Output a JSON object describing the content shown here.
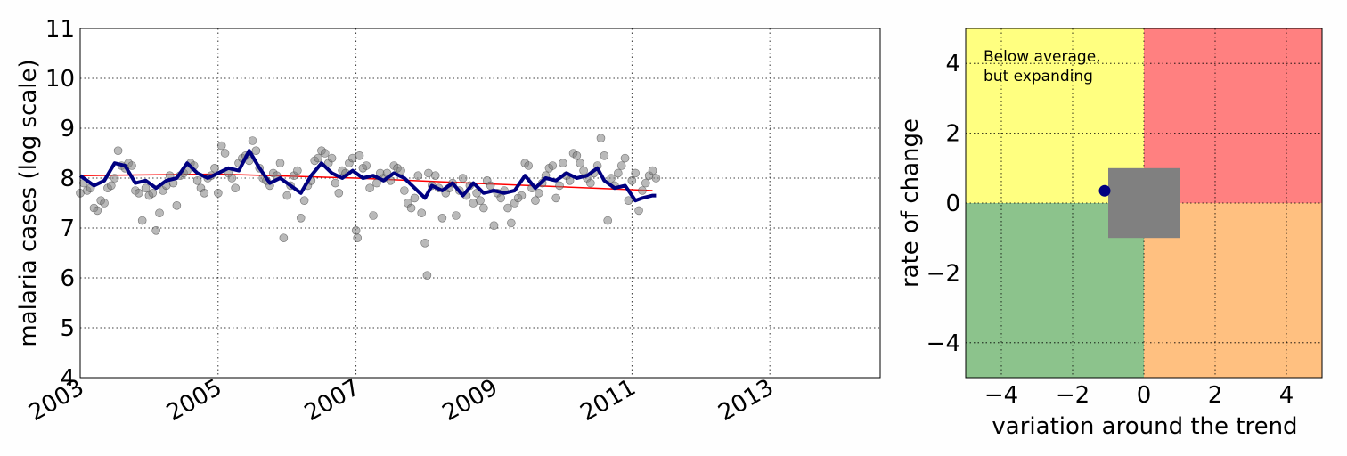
{
  "chart_data": [
    {
      "type": "scatter",
      "ylabel": "malaria cases (log scale)",
      "xlabel": "",
      "xlim": [
        2003.0,
        2014.6
      ],
      "ylim": [
        4,
        11
      ],
      "x_ticks": [
        "2003",
        "2005",
        "2007",
        "2009",
        "2011",
        "2013"
      ],
      "y_ticks": [
        "4",
        "5",
        "6",
        "7",
        "8",
        "9",
        "10",
        "11"
      ],
      "grid": true,
      "series": [
        {
          "kind": "scatter",
          "color": "#808080",
          "points": [
            [
              2003.0,
              7.7
            ],
            [
              2003.05,
              7.9
            ],
            [
              2003.1,
              7.75
            ],
            [
              2003.15,
              7.8
            ],
            [
              2003.2,
              7.4
            ],
            [
              2003.25,
              7.35
            ],
            [
              2003.3,
              7.55
            ],
            [
              2003.35,
              7.5
            ],
            [
              2003.4,
              7.8
            ],
            [
              2003.45,
              7.85
            ],
            [
              2003.5,
              8.0
            ],
            [
              2003.55,
              8.55
            ],
            [
              2003.6,
              8.25
            ],
            [
              2003.65,
              8.2
            ],
            [
              2003.7,
              8.3
            ],
            [
              2003.75,
              8.25
            ],
            [
              2003.8,
              7.75
            ],
            [
              2003.85,
              7.7
            ],
            [
              2003.9,
              7.15
            ],
            [
              2003.95,
              7.8
            ],
            [
              2004.0,
              7.65
            ],
            [
              2004.05,
              7.7
            ],
            [
              2004.1,
              6.95
            ],
            [
              2004.15,
              7.3
            ],
            [
              2004.2,
              7.75
            ],
            [
              2004.25,
              7.85
            ],
            [
              2004.3,
              8.05
            ],
            [
              2004.35,
              7.9
            ],
            [
              2004.4,
              7.45
            ],
            [
              2004.45,
              8.05
            ],
            [
              2004.5,
              8.1
            ],
            [
              2004.55,
              8.15
            ],
            [
              2004.6,
              8.3
            ],
            [
              2004.65,
              8.25
            ],
            [
              2004.7,
              7.95
            ],
            [
              2004.75,
              7.8
            ],
            [
              2004.8,
              7.7
            ],
            [
              2004.85,
              8.0
            ],
            [
              2004.9,
              8.05
            ],
            [
              2004.95,
              8.2
            ],
            [
              2005.0,
              7.7
            ],
            [
              2005.05,
              8.65
            ],
            [
              2005.1,
              8.5
            ],
            [
              2005.15,
              8.1
            ],
            [
              2005.2,
              8.0
            ],
            [
              2005.25,
              7.8
            ],
            [
              2005.3,
              8.3
            ],
            [
              2005.35,
              8.4
            ],
            [
              2005.4,
              8.45
            ],
            [
              2005.45,
              8.35
            ],
            [
              2005.5,
              8.75
            ],
            [
              2005.55,
              8.55
            ],
            [
              2005.6,
              8.2
            ],
            [
              2005.65,
              8.0
            ],
            [
              2005.7,
              7.95
            ],
            [
              2005.75,
              7.85
            ],
            [
              2005.8,
              8.1
            ],
            [
              2005.85,
              8.05
            ],
            [
              2005.9,
              8.3
            ],
            [
              2005.95,
              6.8
            ],
            [
              2006.0,
              7.65
            ],
            [
              2006.05,
              7.85
            ],
            [
              2006.1,
              8.05
            ],
            [
              2006.15,
              8.15
            ],
            [
              2006.2,
              7.2
            ],
            [
              2006.25,
              7.55
            ],
            [
              2006.3,
              7.85
            ],
            [
              2006.35,
              7.95
            ],
            [
              2006.4,
              8.35
            ],
            [
              2006.45,
              8.4
            ],
            [
              2006.5,
              8.55
            ],
            [
              2006.55,
              8.5
            ],
            [
              2006.6,
              8.3
            ],
            [
              2006.65,
              8.4
            ],
            [
              2006.7,
              7.9
            ],
            [
              2006.75,
              7.7
            ],
            [
              2006.8,
              8.15
            ],
            [
              2006.85,
              8.1
            ],
            [
              2006.9,
              8.3
            ],
            [
              2006.95,
              8.4
            ],
            [
              2007.0,
              6.95
            ],
            [
              2007.02,
              6.8
            ],
            [
              2007.05,
              8.45
            ],
            [
              2007.1,
              8.2
            ],
            [
              2007.15,
              8.25
            ],
            [
              2007.2,
              7.8
            ],
            [
              2007.25,
              7.25
            ],
            [
              2007.3,
              7.9
            ],
            [
              2007.35,
              8.1
            ],
            [
              2007.4,
              8.0
            ],
            [
              2007.45,
              8.1
            ],
            [
              2007.5,
              7.95
            ],
            [
              2007.55,
              8.25
            ],
            [
              2007.6,
              8.2
            ],
            [
              2007.65,
              8.15
            ],
            [
              2007.7,
              7.75
            ],
            [
              2007.75,
              7.5
            ],
            [
              2007.8,
              7.4
            ],
            [
              2007.85,
              7.6
            ],
            [
              2007.9,
              8.05
            ],
            [
              2007.95,
              7.3
            ],
            [
              2008.0,
              6.7
            ],
            [
              2008.03,
              6.05
            ],
            [
              2008.05,
              8.1
            ],
            [
              2008.1,
              7.85
            ],
            [
              2008.15,
              8.05
            ],
            [
              2008.2,
              7.8
            ],
            [
              2008.25,
              7.2
            ],
            [
              2008.3,
              7.7
            ],
            [
              2008.35,
              7.8
            ],
            [
              2008.4,
              7.9
            ],
            [
              2008.45,
              7.25
            ],
            [
              2008.5,
              7.75
            ],
            [
              2008.55,
              8.0
            ],
            [
              2008.6,
              7.65
            ],
            [
              2008.65,
              7.85
            ],
            [
              2008.7,
              7.5
            ],
            [
              2008.75,
              7.7
            ],
            [
              2008.8,
              7.55
            ],
            [
              2008.85,
              7.4
            ],
            [
              2008.9,
              7.95
            ],
            [
              2008.95,
              7.85
            ],
            [
              2009.0,
              7.05
            ],
            [
              2009.05,
              7.7
            ],
            [
              2009.1,
              7.6
            ],
            [
              2009.15,
              7.75
            ],
            [
              2009.2,
              7.4
            ],
            [
              2009.25,
              7.1
            ],
            [
              2009.3,
              7.5
            ],
            [
              2009.35,
              7.6
            ],
            [
              2009.4,
              7.65
            ],
            [
              2009.45,
              8.3
            ],
            [
              2009.5,
              8.25
            ],
            [
              2009.55,
              7.8
            ],
            [
              2009.6,
              7.55
            ],
            [
              2009.65,
              7.7
            ],
            [
              2009.7,
              7.9
            ],
            [
              2009.75,
              8.05
            ],
            [
              2009.8,
              8.2
            ],
            [
              2009.85,
              8.25
            ],
            [
              2009.9,
              7.6
            ],
            [
              2009.95,
              7.85
            ],
            [
              2010.0,
              8.3
            ],
            [
              2010.05,
              8.05
            ],
            [
              2010.1,
              7.95
            ],
            [
              2010.15,
              8.5
            ],
            [
              2010.2,
              8.45
            ],
            [
              2010.25,
              8.3
            ],
            [
              2010.3,
              8.15
            ],
            [
              2010.35,
              8.0
            ],
            [
              2010.4,
              7.9
            ],
            [
              2010.45,
              8.1
            ],
            [
              2010.5,
              8.25
            ],
            [
              2010.55,
              8.8
            ],
            [
              2010.6,
              8.45
            ],
            [
              2010.65,
              7.15
            ],
            [
              2010.7,
              8.0
            ],
            [
              2010.75,
              7.85
            ],
            [
              2010.8,
              8.1
            ],
            [
              2010.85,
              8.25
            ],
            [
              2010.9,
              8.4
            ],
            [
              2010.95,
              7.55
            ],
            [
              2011.0,
              7.95
            ],
            [
              2011.05,
              8.1
            ],
            [
              2011.1,
              7.35
            ],
            [
              2011.15,
              7.75
            ],
            [
              2011.2,
              7.9
            ],
            [
              2011.25,
              8.05
            ],
            [
              2011.3,
              8.15
            ],
            [
              2011.35,
              8.0
            ]
          ]
        },
        {
          "kind": "line",
          "color": "#000080",
          "points": [
            [
              2003.0,
              8.05
            ],
            [
              2003.2,
              7.85
            ],
            [
              2003.35,
              7.95
            ],
            [
              2003.5,
              8.3
            ],
            [
              2003.65,
              8.25
            ],
            [
              2003.8,
              7.9
            ],
            [
              2003.95,
              7.95
            ],
            [
              2004.1,
              7.8
            ],
            [
              2004.25,
              7.95
            ],
            [
              2004.4,
              8.0
            ],
            [
              2004.55,
              8.3
            ],
            [
              2004.7,
              8.1
            ],
            [
              2004.85,
              8.0
            ],
            [
              2005.0,
              8.1
            ],
            [
              2005.15,
              8.2
            ],
            [
              2005.3,
              8.15
            ],
            [
              2005.45,
              8.55
            ],
            [
              2005.6,
              8.2
            ],
            [
              2005.75,
              7.9
            ],
            [
              2005.9,
              8.0
            ],
            [
              2006.05,
              7.85
            ],
            [
              2006.2,
              7.7
            ],
            [
              2006.35,
              8.05
            ],
            [
              2006.5,
              8.3
            ],
            [
              2006.65,
              8.1
            ],
            [
              2006.8,
              8.0
            ],
            [
              2006.95,
              8.15
            ],
            [
              2007.1,
              8.0
            ],
            [
              2007.25,
              8.05
            ],
            [
              2007.4,
              7.95
            ],
            [
              2007.55,
              8.1
            ],
            [
              2007.7,
              8.0
            ],
            [
              2007.85,
              7.8
            ],
            [
              2008.0,
              7.6
            ],
            [
              2008.1,
              7.85
            ],
            [
              2008.25,
              7.75
            ],
            [
              2008.4,
              7.9
            ],
            [
              2008.55,
              7.65
            ],
            [
              2008.7,
              7.9
            ],
            [
              2008.85,
              7.7
            ],
            [
              2009.0,
              7.75
            ],
            [
              2009.15,
              7.7
            ],
            [
              2009.3,
              7.75
            ],
            [
              2009.45,
              8.05
            ],
            [
              2009.6,
              7.8
            ],
            [
              2009.75,
              8.0
            ],
            [
              2009.9,
              7.95
            ],
            [
              2010.05,
              8.1
            ],
            [
              2010.2,
              8.0
            ],
            [
              2010.35,
              8.05
            ],
            [
              2010.5,
              8.2
            ],
            [
              2010.6,
              7.95
            ],
            [
              2010.75,
              7.8
            ],
            [
              2010.9,
              7.85
            ],
            [
              2011.05,
              7.55
            ],
            [
              2011.15,
              7.6
            ],
            [
              2011.3,
              7.65
            ],
            [
              2011.35,
              7.65
            ]
          ]
        },
        {
          "kind": "trend",
          "color": "#ff0000",
          "points": [
            [
              2003.0,
              8.05
            ],
            [
              2005.0,
              8.08
            ],
            [
              2007.0,
              8.0
            ],
            [
              2009.0,
              7.88
            ],
            [
              2011.3,
              7.75
            ]
          ]
        }
      ]
    },
    {
      "type": "scatter",
      "xlabel": "variation around the trend",
      "ylabel": "rate of change",
      "xlim": [
        -5,
        5
      ],
      "ylim": [
        -5,
        5
      ],
      "x_ticks": [
        "−4",
        "−2",
        "0",
        "2",
        "4"
      ],
      "y_ticks": [
        "4",
        "2",
        "0",
        "−2",
        "−4"
      ],
      "grid": true,
      "annotation": {
        "line1": "Below average,",
        "line2": "but expanding"
      },
      "quadrants": {
        "top_left": "#ffff80",
        "top_right": "#ff8080",
        "bottom_left": "#8cc38c",
        "bottom_right": "#ffc080"
      },
      "box": {
        "x": [
          -1,
          1
        ],
        "y": [
          -1,
          1
        ],
        "color": "#808080"
      },
      "point": {
        "x": -1.1,
        "y": 0.35,
        "color": "#000080"
      }
    }
  ]
}
